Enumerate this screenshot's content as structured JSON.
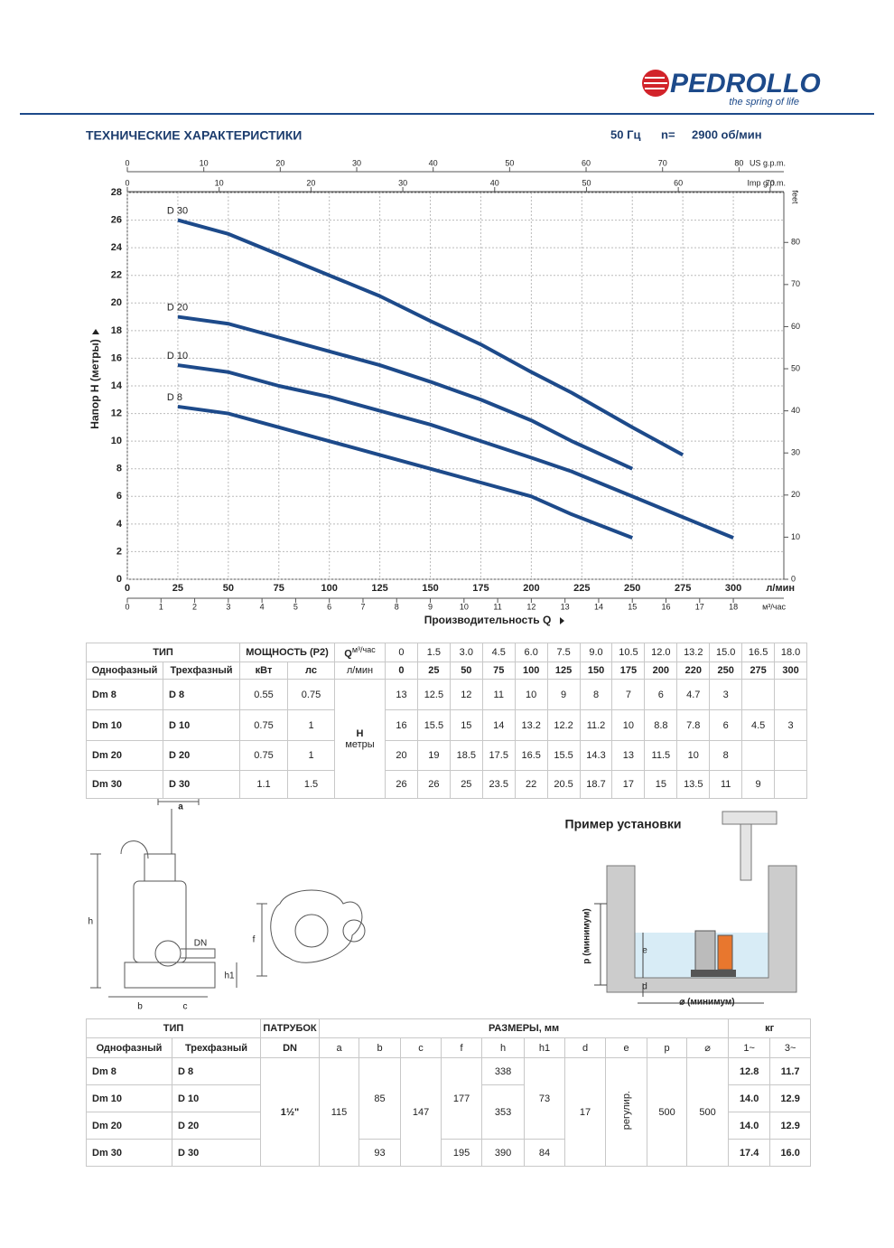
{
  "header": {
    "brand": "PEDROLLO",
    "slogan": "the spring of life",
    "title": "ТЕХНИЧЕСКИЕ ХАРАКТЕРИСТИКИ",
    "frequency": "50 Гц",
    "speed_label": "n=",
    "speed": "2900 об/мин"
  },
  "chart_data": {
    "type": "line",
    "x_label": "Производительность Q",
    "x_unit": "л/мин",
    "y_label": "Напор H (метры)",
    "xlim": [
      0,
      325
    ],
    "xticks": [
      0,
      25,
      50,
      75,
      100,
      125,
      150,
      175,
      200,
      225,
      250,
      275,
      300
    ],
    "ylim": [
      0,
      28
    ],
    "yticks": [
      0,
      2,
      4,
      6,
      8,
      10,
      12,
      14,
      16,
      18,
      20,
      22,
      24,
      26,
      28
    ],
    "grid": true,
    "secondary_axes": [
      {
        "label": "US g.p.m.",
        "position": "top",
        "lim": [
          0,
          85.86
        ],
        "ticks": [
          0,
          10,
          20,
          30,
          40,
          50,
          60,
          70,
          80
        ]
      },
      {
        "label": "Imp g.p.m.",
        "position": "top",
        "lim": [
          0,
          71.49
        ],
        "ticks": [
          0,
          10,
          20,
          30,
          40,
          50,
          60,
          70
        ]
      },
      {
        "label": "м³/час",
        "position": "bottom",
        "lim": [
          0,
          19.5
        ],
        "ticks": [
          0,
          1,
          2,
          3,
          4,
          5,
          6,
          7,
          8,
          9,
          10,
          11,
          12,
          13,
          14,
          15,
          16,
          17,
          18
        ]
      },
      {
        "label": "feet",
        "position": "right",
        "lim": [
          0,
          91.86
        ],
        "ticks": [
          0,
          10,
          20,
          30,
          40,
          50,
          60,
          70,
          80
        ]
      }
    ],
    "series": [
      {
        "name": "D 30",
        "color": "#1d4a8a",
        "x": [
          25,
          50,
          75,
          100,
          125,
          150,
          175,
          200,
          220,
          250,
          275
        ],
        "values": [
          26,
          25,
          23.5,
          22,
          20.5,
          18.7,
          17,
          15,
          13.5,
          11,
          9
        ]
      },
      {
        "name": "D 20",
        "color": "#1d4a8a",
        "x": [
          25,
          50,
          75,
          100,
          125,
          150,
          175,
          200,
          220,
          250
        ],
        "values": [
          19,
          18.5,
          17.5,
          16.5,
          15.5,
          14.3,
          13,
          11.5,
          10,
          8
        ]
      },
      {
        "name": "D 10",
        "color": "#1d4a8a",
        "x": [
          25,
          50,
          75,
          100,
          125,
          150,
          175,
          200,
          220,
          250,
          275,
          300
        ],
        "values": [
          15.5,
          15,
          14,
          13.2,
          12.2,
          11.2,
          10,
          8.8,
          7.8,
          6,
          4.5,
          3
        ]
      },
      {
        "name": "D 8",
        "color": "#1d4a8a",
        "x": [
          25,
          50,
          75,
          100,
          125,
          150,
          175,
          200,
          220,
          250
        ],
        "values": [
          12.5,
          12,
          11,
          10,
          9,
          8,
          7,
          6,
          4.7,
          3
        ]
      }
    ]
  },
  "performance_table": {
    "type_header": "ТИП",
    "power_header": "МОЩНОСТЬ (P2)",
    "q_header": "Q",
    "q_unit_m3h": "м³/час",
    "q_unit_lmin": "л/мин",
    "single_phase": "Однофазный",
    "three_phase": "Трехфазный",
    "kw": "кВт",
    "hp": "лс",
    "q_m3h": [
      "0",
      "1.5",
      "3.0",
      "4.5",
      "6.0",
      "7.5",
      "9.0",
      "10.5",
      "12.0",
      "13.2",
      "15.0",
      "16.5",
      "18.0"
    ],
    "q_lmin": [
      "0",
      "25",
      "50",
      "75",
      "100",
      "125",
      "150",
      "175",
      "200",
      "220",
      "250",
      "275",
      "300"
    ],
    "h_label": "H",
    "h_unit": "метры",
    "rows": [
      {
        "single": "Dm 8",
        "three": "D 8",
        "kw": "0.55",
        "hp": "0.75",
        "h": [
          "13",
          "12.5",
          "12",
          "11",
          "10",
          "9",
          "8",
          "7",
          "6",
          "4.7",
          "3",
          null,
          null
        ]
      },
      {
        "single": "Dm 10",
        "three": "D 10",
        "kw": "0.75",
        "hp": "1",
        "h": [
          "16",
          "15.5",
          "15",
          "14",
          "13.2",
          "12.2",
          "11.2",
          "10",
          "8.8",
          "7.8",
          "6",
          "4.5",
          "3"
        ]
      },
      {
        "single": "Dm 20",
        "three": "D 20",
        "kw": "0.75",
        "hp": "1",
        "h": [
          "20",
          "19",
          "18.5",
          "17.5",
          "16.5",
          "15.5",
          "14.3",
          "13",
          "11.5",
          "10",
          "8",
          null,
          null
        ]
      },
      {
        "single": "Dm 30",
        "three": "D 30",
        "kw": "1.1",
        "hp": "1.5",
        "h": [
          "26",
          "26",
          "25",
          "23.5",
          "22",
          "20.5",
          "18.7",
          "17",
          "15",
          "13.5",
          "11",
          "9",
          null
        ]
      }
    ]
  },
  "drawing": {
    "a": "a",
    "b": "b",
    "c": "c",
    "h": "h",
    "h1": "h1",
    "dn": "DN",
    "f": "f"
  },
  "installation": {
    "title": "Пример установки",
    "p": "p (минимум)",
    "e": "e",
    "d": "d",
    "diameter": "⌀ (минимум)"
  },
  "dimensions_table": {
    "type_header": "ТИП",
    "outlet_header": "ПАТРУБОК",
    "outlet_sub": "DN",
    "dims_header": "РАЗМЕРЫ, мм",
    "weight_header": "кг",
    "single_phase": "Однофазный",
    "three_phase": "Трехфазный",
    "dim_cols": [
      "a",
      "b",
      "c",
      "f",
      "h",
      "h1",
      "d",
      "e",
      "p",
      "⌀"
    ],
    "weight_cols": [
      "1~",
      "3~"
    ],
    "models": [
      [
        "Dm 8",
        "D 8"
      ],
      [
        "Dm 10",
        "D 10"
      ],
      [
        "Dm 20",
        "D 20"
      ],
      [
        "Dm 30",
        "D 30"
      ]
    ],
    "dn": "1½\"",
    "a": "115",
    "b": [
      "85",
      "93"
    ],
    "c": "147",
    "f": [
      "177",
      "195"
    ],
    "h": [
      "338",
      "353",
      "390"
    ],
    "h1": [
      "73",
      "84"
    ],
    "d": "17",
    "e": "регулир.",
    "p": "500",
    "diameter": "500",
    "weights": [
      [
        "12.8",
        "11.7"
      ],
      [
        "14.0",
        "12.9"
      ],
      [
        "14.0",
        "12.9"
      ],
      [
        "17.4",
        "16.0"
      ]
    ]
  }
}
